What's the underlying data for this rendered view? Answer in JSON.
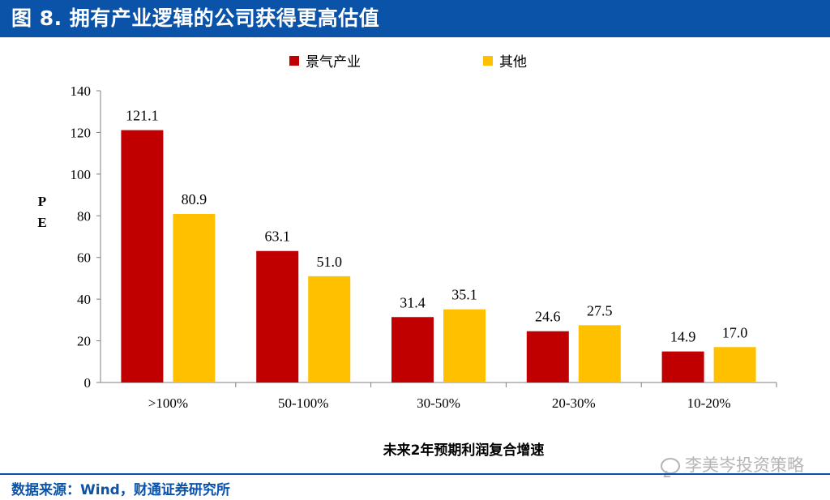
{
  "header": {
    "title": "图 8. 拥有产业逻辑的公司获得更高估值"
  },
  "chart_data": {
    "type": "bar",
    "categories": [
      ">100%",
      "50-100%",
      "30-50%",
      "20-30%",
      "10-20%"
    ],
    "series": [
      {
        "name": "景气产业",
        "color": "#c00000",
        "values": [
          121.1,
          63.1,
          31.4,
          24.6,
          14.9
        ]
      },
      {
        "name": "其他",
        "color": "#ffc000",
        "values": [
          80.9,
          51.0,
          35.1,
          27.5,
          17.0
        ]
      }
    ],
    "ylabel": "P E",
    "xlabel": "未来2年预期利润复合增速",
    "ylim": [
      0,
      140
    ],
    "yticks": [
      0,
      20,
      40,
      60,
      80,
      100,
      120,
      140
    ],
    "legend_position": "top",
    "grid": false
  },
  "footer": {
    "source": "数据来源：Wind，财通证券研究所"
  },
  "watermark": {
    "text": "李美岑投资策略"
  }
}
